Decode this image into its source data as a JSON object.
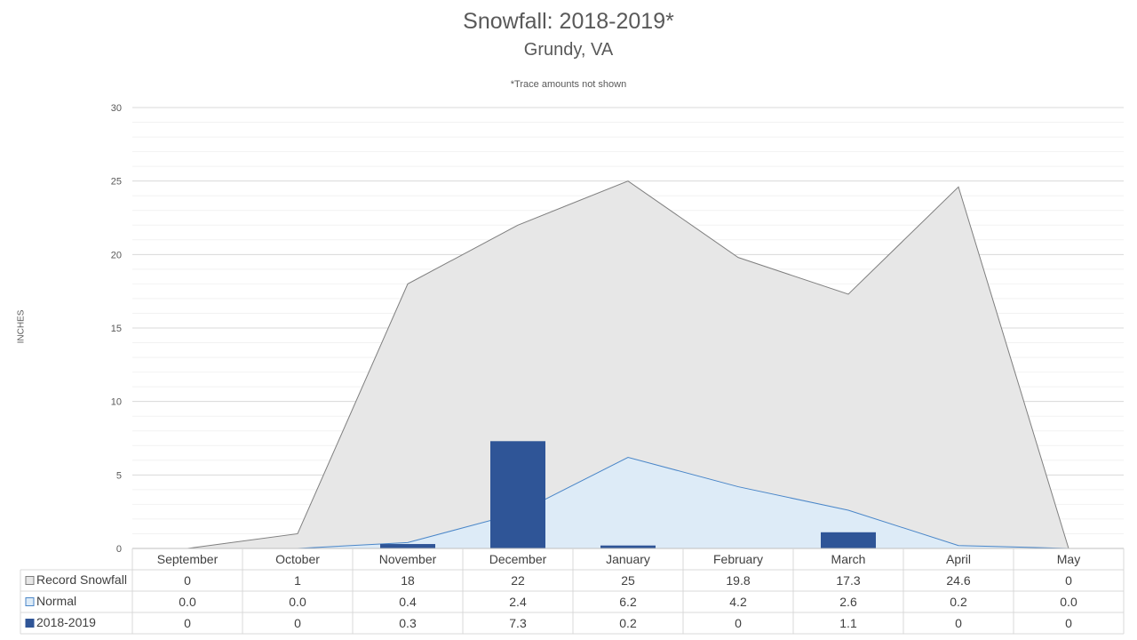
{
  "chart_data": {
    "type": "area",
    "title": "Snowfall: 2018-2019*",
    "subtitle": "Grundy, VA",
    "note": "*Trace amounts not shown",
    "ylabel": "INCHES",
    "ylim": [
      0,
      30
    ],
    "yticks": [
      0,
      5,
      10,
      15,
      20,
      25,
      30
    ],
    "grid": true,
    "categories": [
      "September",
      "October",
      "November",
      "December",
      "January",
      "February",
      "March",
      "April",
      "May"
    ],
    "series": [
      {
        "name": "Record Snowfall",
        "kind": "area",
        "color": "#e7e7e7",
        "line_color": "#7f7f7f",
        "values": [
          0,
          1,
          18,
          22,
          25,
          19.8,
          17.3,
          24.6,
          0
        ],
        "labels": [
          "0",
          "1",
          "18",
          "22",
          "25",
          "19.8",
          "17.3",
          "24.6",
          "0"
        ]
      },
      {
        "name": "Normal",
        "kind": "area",
        "color": "#ddebf7",
        "line_color": "#4a86c8",
        "values": [
          0.0,
          0.0,
          0.4,
          2.4,
          6.2,
          4.2,
          2.6,
          0.2,
          0.0
        ],
        "labels": [
          "0.0",
          "0.0",
          "0.4",
          "2.4",
          "6.2",
          "4.2",
          "2.6",
          "0.2",
          "0.0"
        ]
      },
      {
        "name": "2018-2019",
        "kind": "bar",
        "color": "#2f5597",
        "values": [
          0,
          0,
          0.3,
          7.3,
          0.2,
          0,
          1.1,
          0,
          0
        ],
        "labels": [
          "0",
          "0",
          "0.3",
          "7.3",
          "0.2",
          "0",
          "1.1",
          "0",
          "0"
        ]
      }
    ]
  }
}
